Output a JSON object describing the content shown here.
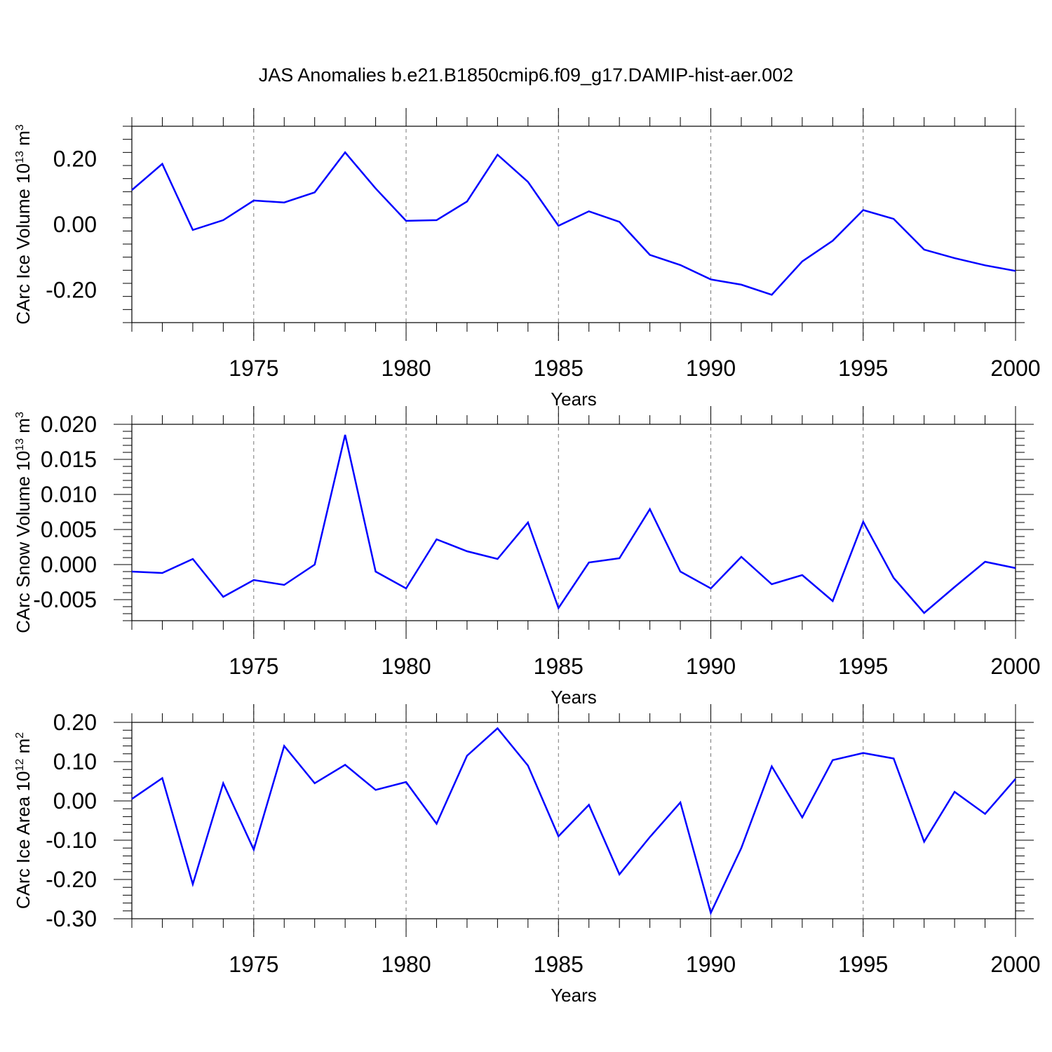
{
  "figure_title": "JAS Anomalies b.e21.B1850cmip6.f09_g17.DAMIP-hist-aer.002",
  "colors": {
    "series": "#0000ff",
    "grid": "#777777",
    "axis": "#000000"
  },
  "chart_data": [
    {
      "type": "line",
      "ylabel_prefix": "CArc Ice Volume 10",
      "ylabel_exp": "13",
      "ylabel_unit": " m",
      "ylabel_unit_exp": "3",
      "xlabel": "Years",
      "xlim": [
        1971,
        2000
      ],
      "ylim": [
        -0.3,
        0.3
      ],
      "xticks": [
        1975,
        1980,
        1985,
        1990,
        1995,
        2000
      ],
      "xtick_labels": [
        "1975",
        "1980",
        "1985",
        "1990",
        "1995",
        "2000"
      ],
      "yticks": [
        -0.2,
        0.0,
        0.2
      ],
      "ytick_labels": [
        "-0.20",
        "0.00",
        "0.20"
      ],
      "grid_x": [
        1975,
        1980,
        1985,
        1990,
        1995
      ],
      "series": [
        {
          "name": "CArc Ice Volume",
          "x": [
            1971,
            1972,
            1973,
            1974,
            1975,
            1976,
            1977,
            1978,
            1979,
            1980,
            1981,
            1982,
            1983,
            1984,
            1985,
            1986,
            1987,
            1988,
            1989,
            1990,
            1991,
            1992,
            1993,
            1994,
            1995,
            1996,
            1997,
            1998,
            1999,
            2000
          ],
          "values": [
            0.105,
            0.185,
            -0.017,
            0.013,
            0.073,
            0.067,
            0.098,
            0.22,
            0.11,
            0.011,
            0.013,
            0.07,
            0.213,
            0.13,
            -0.004,
            0.04,
            0.008,
            -0.093,
            -0.124,
            -0.168,
            -0.184,
            -0.215,
            -0.113,
            -0.05,
            0.044,
            0.017,
            -0.077,
            -0.103,
            -0.125,
            -0.142
          ]
        }
      ]
    },
    {
      "type": "line",
      "ylabel_prefix": "CArc Snow Volume 10",
      "ylabel_exp": "13",
      "ylabel_unit": " m",
      "ylabel_unit_exp": "3",
      "xlabel": "Years",
      "xlim": [
        1971,
        2000
      ],
      "ylim": [
        -0.008,
        0.02
      ],
      "xticks": [
        1975,
        1980,
        1985,
        1990,
        1995,
        2000
      ],
      "xtick_labels": [
        "1975",
        "1980",
        "1985",
        "1990",
        "1995",
        "2000"
      ],
      "yticks": [
        -0.005,
        0.0,
        0.005,
        0.01,
        0.015,
        0.02
      ],
      "ytick_labels": [
        "-0.005",
        "0.000",
        "0.005",
        "0.010",
        "0.015",
        "0.020"
      ],
      "grid_x": [
        1975,
        1980,
        1985,
        1990,
        1995
      ],
      "series": [
        {
          "name": "CArc Snow Volume",
          "x": [
            1971,
            1972,
            1973,
            1974,
            1975,
            1976,
            1977,
            1978,
            1979,
            1980,
            1981,
            1982,
            1983,
            1984,
            1985,
            1986,
            1987,
            1988,
            1989,
            1990,
            1991,
            1992,
            1993,
            1994,
            1995,
            1996,
            1997,
            1998,
            1999,
            2000
          ],
          "values": [
            -0.001,
            -0.0012,
            0.0008,
            -0.0046,
            -0.0022,
            -0.0029,
            0.0,
            0.0185,
            -0.001,
            -0.0034,
            0.0036,
            0.0019,
            0.0008,
            0.006,
            -0.0062,
            0.0003,
            0.0009,
            0.0079,
            -0.001,
            -0.0034,
            0.0011,
            -0.0028,
            -0.0015,
            -0.0052,
            0.0061,
            -0.0019,
            -0.0069,
            -0.0032,
            0.0004,
            -0.0005
          ]
        }
      ]
    },
    {
      "type": "line",
      "ylabel_prefix": "CArc Ice Area 10",
      "ylabel_exp": "12",
      "ylabel_unit": " m",
      "ylabel_unit_exp": "2",
      "xlabel": "Years",
      "xlim": [
        1971,
        2000
      ],
      "ylim": [
        -0.3,
        0.2
      ],
      "xticks": [
        1975,
        1980,
        1985,
        1990,
        1995,
        2000
      ],
      "xtick_labels": [
        "1975",
        "1980",
        "1985",
        "1990",
        "1995",
        "2000"
      ],
      "yticks": [
        -0.3,
        -0.2,
        -0.1,
        0.0,
        0.1,
        0.2
      ],
      "ytick_labels": [
        "-0.30",
        "-0.20",
        "-0.10",
        "0.00",
        "0.10",
        "0.20"
      ],
      "grid_x": [
        1975,
        1980,
        1985,
        1990,
        1995
      ],
      "series": [
        {
          "name": "CArc Ice Area",
          "x": [
            1971,
            1972,
            1973,
            1974,
            1975,
            1976,
            1977,
            1978,
            1979,
            1980,
            1981,
            1982,
            1983,
            1984,
            1985,
            1986,
            1987,
            1988,
            1989,
            1990,
            1991,
            1992,
            1993,
            1994,
            1995,
            1996,
            1997,
            1998,
            1999,
            2000
          ],
          "values": [
            0.005,
            0.058,
            -0.212,
            0.045,
            -0.124,
            0.14,
            0.045,
            0.092,
            0.028,
            0.048,
            -0.058,
            0.115,
            0.185,
            0.09,
            -0.09,
            -0.01,
            -0.187,
            -0.092,
            -0.004,
            -0.285,
            -0.12,
            0.088,
            -0.042,
            0.104,
            0.122,
            0.108,
            -0.104,
            0.023,
            -0.033,
            0.056
          ]
        }
      ]
    }
  ]
}
